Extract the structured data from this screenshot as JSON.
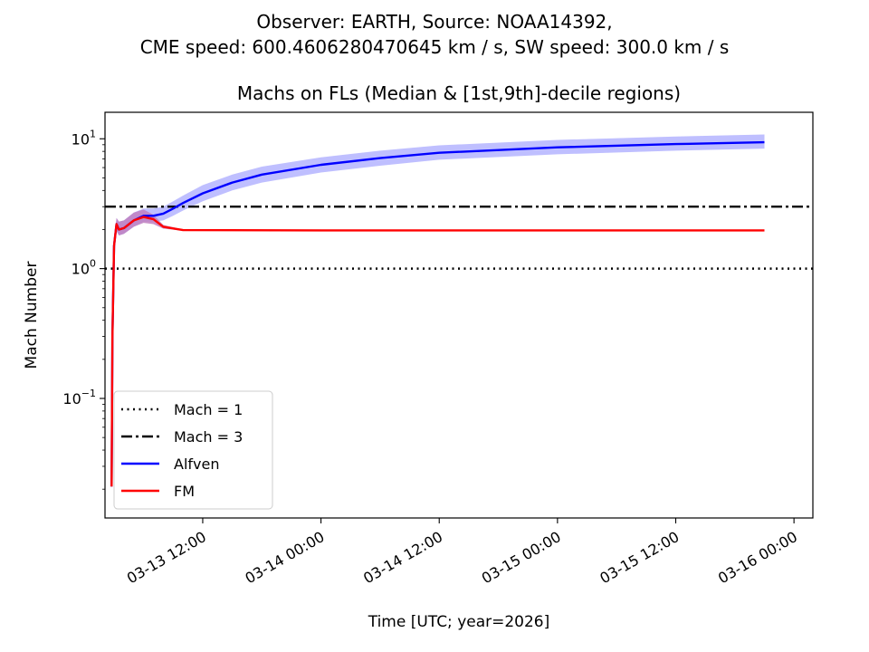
{
  "suptitle": {
    "line1": "Observer: EARTH, Source: NOAA14392,",
    "line2": "CME speed: 600.4606280470645 km / s, SW speed: 300.0 km / s"
  },
  "chart_data": {
    "type": "line",
    "title": "Machs on FLs (Median & [1st,9th]-decile regions)",
    "xlabel": "Time [UTC; year=2026]",
    "ylabel": "Mach Number",
    "yscale": "log",
    "xlim": [
      "2026-03-13 02:05",
      "2026-03-16 01:55"
    ],
    "ylim": [
      0.012,
      16
    ],
    "xticks": [
      "2026-03-13 12:00",
      "2026-03-14 00:00",
      "2026-03-14 12:00",
      "2026-03-15 00:00",
      "2026-03-15 12:00",
      "2026-03-16 00:00"
    ],
    "xtick_labels": [
      "03-13 12:00",
      "03-14 00:00",
      "03-14 12:00",
      "03-15 00:00",
      "03-15 12:00",
      "03-16 00:00"
    ],
    "yticks": [
      0.1,
      1,
      10
    ],
    "ytick_labels": [
      {
        "base": "10",
        "exp": "−1"
      },
      {
        "base": "10",
        "exp": "0"
      },
      {
        "base": "10",
        "exp": "1"
      }
    ],
    "grid": false,
    "legend_position": "lower-left",
    "hlines": [
      {
        "name": "Mach = 1",
        "y": 1,
        "color": "#000000",
        "style": "dotted"
      },
      {
        "name": "Mach = 3",
        "y": 3,
        "color": "#000000",
        "style": "dashdot"
      }
    ],
    "series": [
      {
        "name": "Alfven",
        "color": "#0000ff",
        "band_color": "#bfbfff",
        "points": [
          [
            "2026-03-13 02:45",
            0.021,
            0.021,
            0.021
          ],
          [
            "2026-03-13 02:50",
            0.3,
            0.27,
            0.33
          ],
          [
            "2026-03-13 03:00",
            1.5,
            1.35,
            1.65
          ],
          [
            "2026-03-13 03:15",
            2.2,
            1.95,
            2.45
          ],
          [
            "2026-03-13 03:30",
            2.0,
            1.8,
            2.3
          ],
          [
            "2026-03-13 04:00",
            2.05,
            1.85,
            2.35
          ],
          [
            "2026-03-13 05:00",
            2.35,
            2.1,
            2.7
          ],
          [
            "2026-03-13 06:00",
            2.55,
            2.3,
            2.9
          ],
          [
            "2026-03-13 07:00",
            2.55,
            2.3,
            2.9
          ],
          [
            "2026-03-13 08:00",
            2.65,
            2.35,
            3.0
          ],
          [
            "2026-03-13 09:00",
            2.9,
            2.55,
            3.3
          ],
          [
            "2026-03-13 10:00",
            3.2,
            2.8,
            3.65
          ],
          [
            "2026-03-13 12:00",
            3.8,
            3.3,
            4.4
          ],
          [
            "2026-03-13 15:00",
            4.6,
            4.0,
            5.3
          ],
          [
            "2026-03-13 18:00",
            5.3,
            4.6,
            6.1
          ],
          [
            "2026-03-14 00:00",
            6.3,
            5.5,
            7.2
          ],
          [
            "2026-03-14 06:00",
            7.1,
            6.2,
            8.1
          ],
          [
            "2026-03-14 12:00",
            7.8,
            6.9,
            8.9
          ],
          [
            "2026-03-15 00:00",
            8.6,
            7.6,
            9.8
          ],
          [
            "2026-03-15 12:00",
            9.1,
            8.1,
            10.4
          ],
          [
            "2026-03-15 21:00",
            9.4,
            8.4,
            10.8
          ]
        ]
      },
      {
        "name": "FM",
        "color": "#ff0000",
        "band_color": "#bf7fbf",
        "points": [
          [
            "2026-03-13 02:45",
            0.021,
            0.021,
            0.021
          ],
          [
            "2026-03-13 02:50",
            0.3,
            0.27,
            0.33
          ],
          [
            "2026-03-13 03:00",
            1.5,
            1.35,
            1.65
          ],
          [
            "2026-03-13 03:15",
            2.2,
            1.95,
            2.45
          ],
          [
            "2026-03-13 03:30",
            2.0,
            1.8,
            2.3
          ],
          [
            "2026-03-13 04:00",
            2.05,
            1.85,
            2.35
          ],
          [
            "2026-03-13 05:00",
            2.35,
            2.1,
            2.7
          ],
          [
            "2026-03-13 06:00",
            2.5,
            2.25,
            2.85
          ],
          [
            "2026-03-13 07:00",
            2.4,
            2.2,
            2.6
          ],
          [
            "2026-03-13 08:00",
            2.1,
            2.03,
            2.17
          ],
          [
            "2026-03-13 10:00",
            1.98,
            1.96,
            2.0
          ],
          [
            "2026-03-14 00:00",
            1.97,
            1.96,
            1.98
          ],
          [
            "2026-03-15 21:00",
            1.97,
            1.96,
            1.98
          ]
        ]
      }
    ]
  }
}
